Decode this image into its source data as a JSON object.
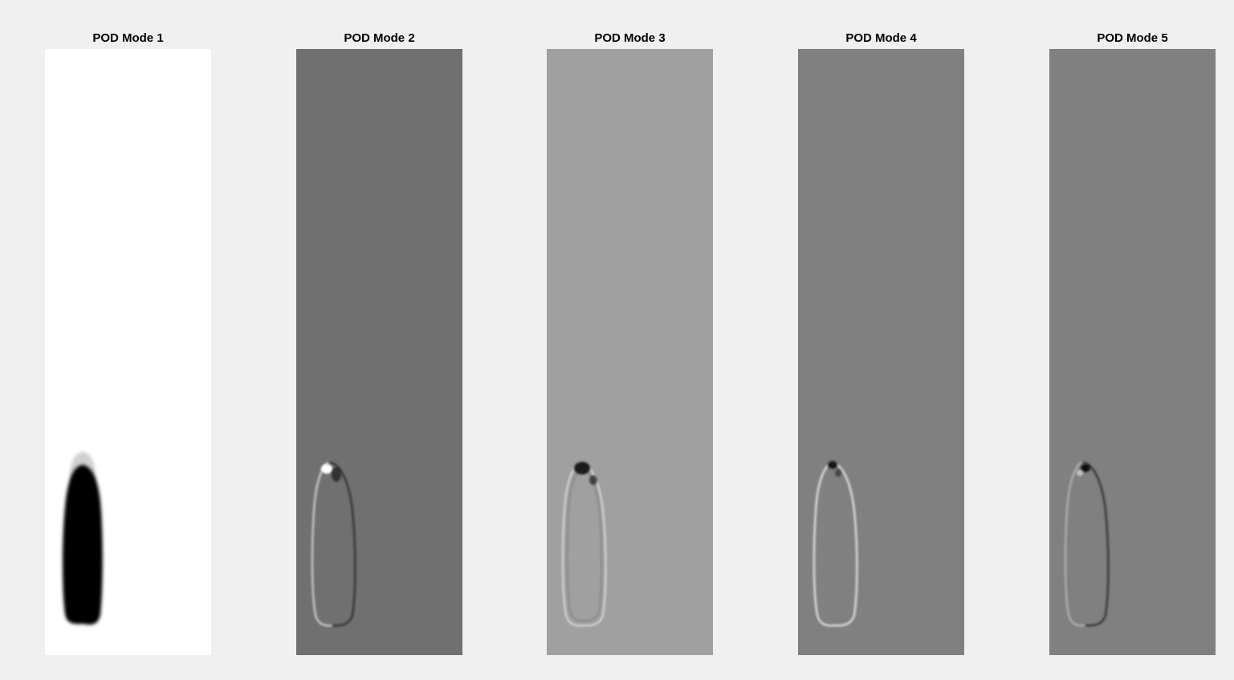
{
  "figure": {
    "panels": [
      {
        "title": "POD Mode 1",
        "background": "#ffffff"
      },
      {
        "title": "POD Mode 2",
        "background": "#707070"
      },
      {
        "title": "POD Mode 3",
        "background": "#a0a0a0"
      },
      {
        "title": "POD Mode 4",
        "background": "#808080"
      },
      {
        "title": "POD Mode 5",
        "background": "#808080"
      }
    ],
    "colors": {
      "figure_background": "#f0f0f0",
      "dark": "#000000",
      "light": "#ffffff"
    }
  }
}
